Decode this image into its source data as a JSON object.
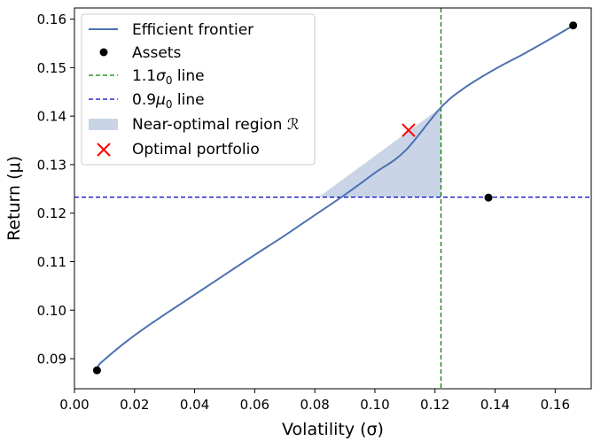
{
  "chart_data": {
    "type": "line",
    "xlabel": "Volatility (σ)",
    "ylabel": "Return (μ)",
    "xlim": [
      0.0,
      0.172
    ],
    "ylim": [
      0.0838,
      0.1623
    ],
    "xticks": [
      0.0,
      0.02,
      0.04,
      0.06,
      0.08,
      0.1,
      0.12,
      0.14,
      0.16
    ],
    "xtick_labels": [
      "0.00",
      "0.02",
      "0.04",
      "0.06",
      "0.08",
      "0.10",
      "0.12",
      "0.14",
      "0.16"
    ],
    "yticks": [
      0.09,
      0.1,
      0.11,
      0.12,
      0.13,
      0.14,
      0.15,
      0.16
    ],
    "ytick_labels": [
      "0.09",
      "0.10",
      "0.11",
      "0.12",
      "0.13",
      "0.14",
      "0.15",
      "0.16"
    ],
    "grid": false,
    "legend_position": "top-left",
    "frontier": {
      "color": "#4c72b0",
      "points": [
        [
          0.0075,
          0.0878
        ],
        [
          0.0078,
          0.0884
        ],
        [
          0.0085,
          0.089
        ],
        [
          0.01,
          0.0898
        ],
        [
          0.013,
          0.0914
        ],
        [
          0.017,
          0.0934
        ],
        [
          0.022,
          0.0957
        ],
        [
          0.03,
          0.0991
        ],
        [
          0.04,
          0.1032
        ],
        [
          0.05,
          0.1073
        ],
        [
          0.06,
          0.1114
        ],
        [
          0.07,
          0.1154
        ],
        [
          0.08,
          0.1196
        ],
        [
          0.09,
          0.1238
        ],
        [
          0.1,
          0.1283
        ],
        [
          0.11,
          0.1328
        ],
        [
          0.122,
          0.1418
        ],
        [
          0.13,
          0.1459
        ],
        [
          0.14,
          0.1497
        ],
        [
          0.15,
          0.153
        ],
        [
          0.16,
          0.1565
        ],
        [
          0.166,
          0.1587
        ]
      ]
    },
    "assets": {
      "color": "#000000",
      "points": [
        [
          0.0075,
          0.0876
        ],
        [
          0.1378,
          0.1232
        ],
        [
          0.166,
          0.1587
        ]
      ]
    },
    "sigma_line": {
      "x": 0.122,
      "color": "#008000"
    },
    "mu_line": {
      "y": 0.1233,
      "color": "#0000cc"
    },
    "near_optimal_region": {
      "color": "#4c72b0",
      "opacity": 0.3,
      "points": [
        [
          0.0813,
          0.1233
        ],
        [
          0.122,
          0.1233
        ],
        [
          0.122,
          0.1418
        ]
      ]
    },
    "optimal_portfolio": {
      "x": 0.1112,
      "y": 0.1371,
      "color": "#ff0000"
    },
    "legend": {
      "frontier": "Efficient frontier",
      "assets": "Assets",
      "sigma_main": "1.1",
      "sigma_sym": "σ",
      "sigma_sub": "0",
      "sigma_tail": " line",
      "mu_main": "0.9",
      "mu_sym": "μ",
      "mu_sub": "0",
      "mu_tail": " line",
      "region_main": "Near-optimal region ",
      "region_sym": "ℛ",
      "optimal": "Optimal portfolio"
    }
  }
}
